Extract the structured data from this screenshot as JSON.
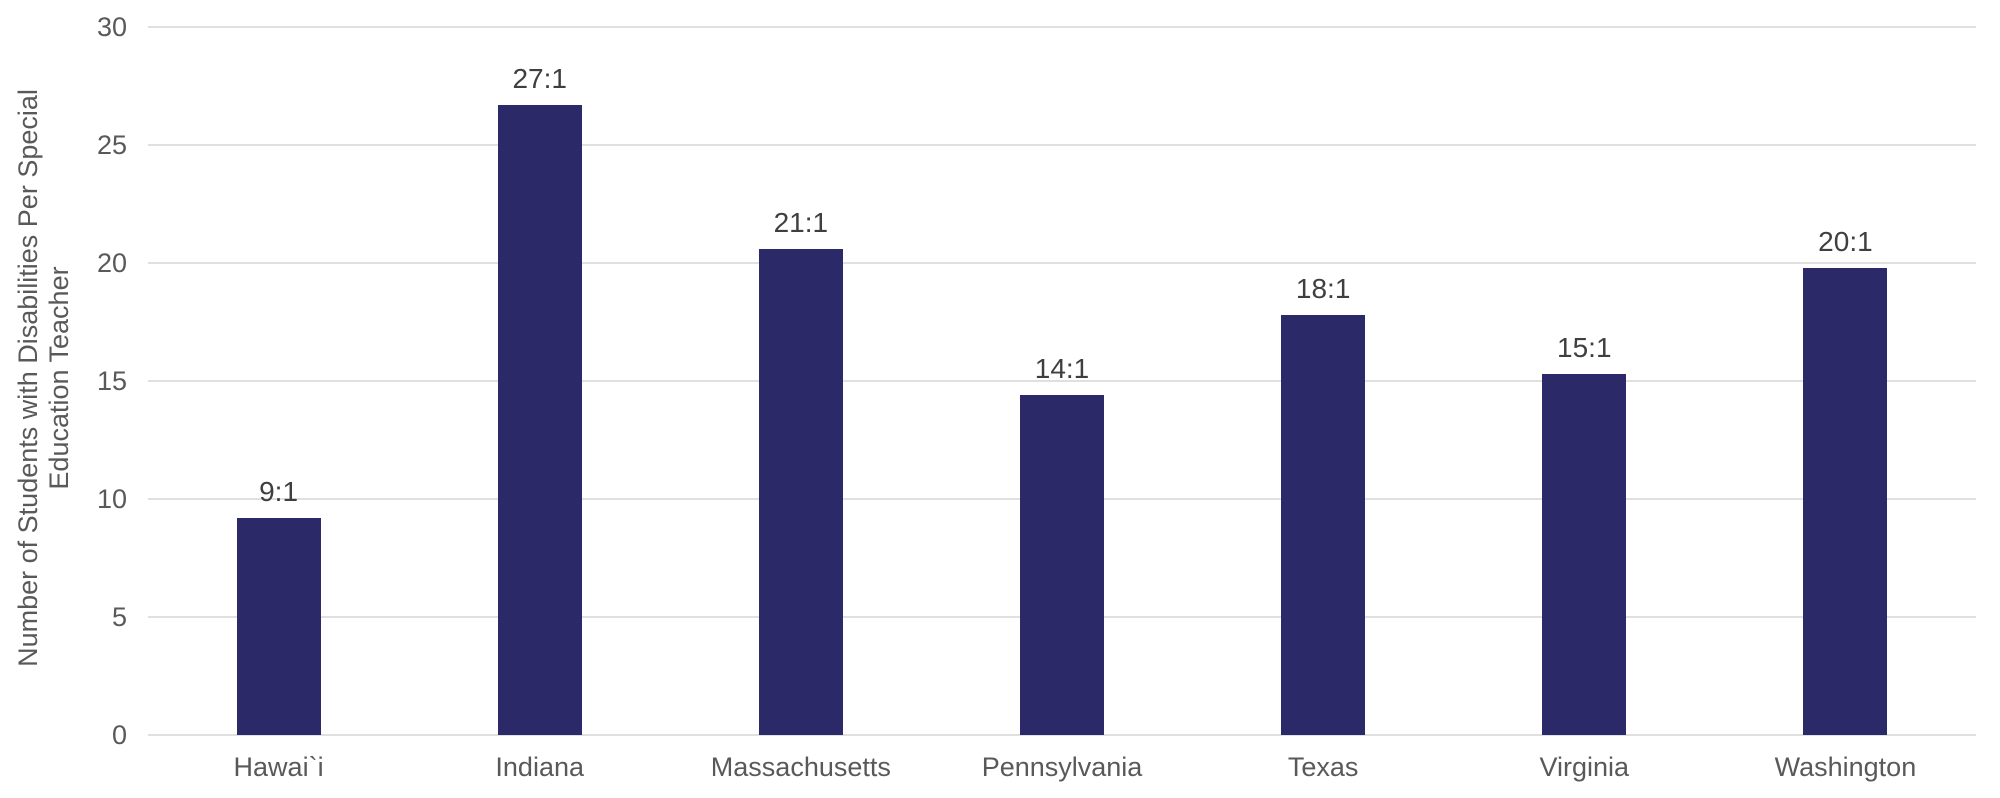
{
  "chart_data": {
    "type": "bar",
    "title": "",
    "categories": [
      "Hawai`i",
      "Indiana",
      "Massachusetts",
      "Pennsylvania",
      "Texas",
      "Virginia",
      "Washington"
    ],
    "values": [
      9.2,
      26.7,
      20.6,
      14.4,
      17.8,
      15.3,
      19.8
    ],
    "bar_labels": [
      "9:1",
      "27:1",
      "21:1",
      "14:1",
      "18:1",
      "15:1",
      "20:1"
    ],
    "xlabel": "",
    "ylabel": "Number of Students with Disabilities Per Special Education Teacher",
    "ylabel_lines": [
      "Number of Students with Disabilities Per Special",
      "Education Teacher"
    ],
    "yticks": [
      0,
      5,
      10,
      15,
      20,
      25,
      30
    ],
    "ytick_labels": [
      "0",
      "5",
      "10",
      "15",
      "20",
      "25",
      "30"
    ],
    "ylim": [
      0,
      30
    ],
    "grid": "horizontal",
    "legend": "none",
    "colors": {
      "bar": "#2b2967",
      "grid": "#e0e0e0",
      "axis_text": "#595959",
      "value_label_text": "#3f3f3f",
      "background": "#ffffff"
    }
  }
}
